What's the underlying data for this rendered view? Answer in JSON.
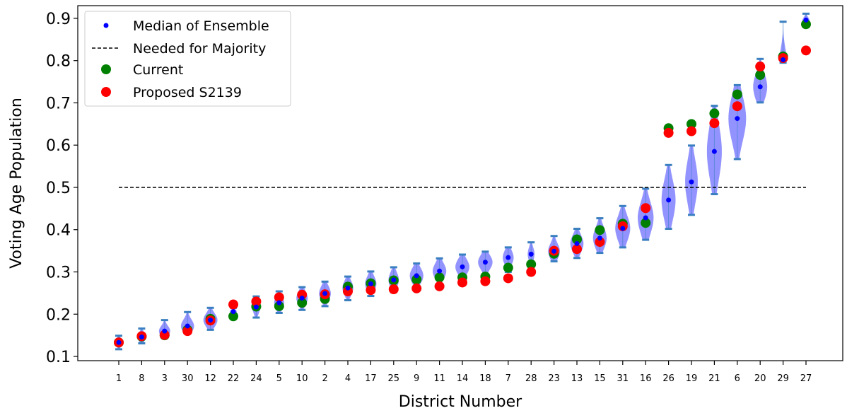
{
  "chart_data": {
    "type": "scatter",
    "title": "",
    "xlabel": "District Number",
    "ylabel": "Voting Age Population",
    "ylim": [
      0.09,
      0.93
    ],
    "yticks": [
      "0.1",
      "0.2",
      "0.3",
      "0.4",
      "0.5",
      "0.6",
      "0.7",
      "0.8",
      "0.9"
    ],
    "grid": false,
    "legend_position": "top-left",
    "categories": [
      "1",
      "8",
      "3",
      "30",
      "12",
      "22",
      "24",
      "5",
      "10",
      "2",
      "4",
      "17",
      "25",
      "9",
      "11",
      "14",
      "18",
      "7",
      "28",
      "23",
      "13",
      "15",
      "31",
      "16",
      "26",
      "19",
      "21",
      "6",
      "20",
      "29",
      "27"
    ],
    "series": [
      {
        "name": "Median of Ensemble",
        "marker": "small-dot",
        "color": "#0000ff",
        "values": [
          0.133,
          0.146,
          0.16,
          0.172,
          0.186,
          0.206,
          0.217,
          0.227,
          0.238,
          0.249,
          0.262,
          0.272,
          0.281,
          0.291,
          0.302,
          0.312,
          0.323,
          0.334,
          0.342,
          0.349,
          0.367,
          0.38,
          0.403,
          0.428,
          0.47,
          0.513,
          0.585,
          0.663,
          0.738,
          0.802,
          0.896
        ]
      },
      {
        "name": "Needed for Majority",
        "style": "dashed-line",
        "color": "#000000",
        "value": 0.5
      },
      {
        "name": "Current",
        "marker": "dot",
        "color": "#008000",
        "values": [
          0.133,
          0.147,
          0.15,
          0.163,
          0.189,
          0.195,
          0.218,
          0.219,
          0.227,
          0.236,
          0.265,
          0.273,
          0.28,
          0.282,
          0.287,
          0.287,
          0.289,
          0.31,
          0.318,
          0.343,
          0.377,
          0.399,
          0.414,
          0.416,
          0.64,
          0.65,
          0.675,
          0.72,
          0.766,
          0.81,
          0.886
        ]
      },
      {
        "name": "Proposed S2139",
        "marker": "dot",
        "color": "#ff0000",
        "values": [
          0.133,
          0.148,
          0.151,
          0.16,
          0.185,
          0.223,
          0.23,
          0.24,
          0.246,
          0.247,
          0.254,
          0.257,
          0.259,
          0.261,
          0.266,
          0.275,
          0.278,
          0.285,
          0.3,
          0.35,
          0.354,
          0.371,
          0.408,
          0.451,
          0.629,
          0.633,
          0.652,
          0.692,
          0.786,
          0.806,
          0.824
        ]
      }
    ],
    "ensemble_distribution": {
      "type": "violin",
      "color": "#8080ff",
      "whisker_color": "#3a7fc0",
      "min": [
        0.117,
        0.131,
        0.147,
        0.155,
        0.163,
        0.197,
        0.192,
        0.203,
        0.21,
        0.219,
        0.233,
        0.243,
        0.252,
        0.26,
        0.271,
        0.282,
        0.291,
        0.3,
        0.316,
        0.325,
        0.333,
        0.345,
        0.358,
        0.376,
        0.402,
        0.435,
        0.484,
        0.567,
        0.701,
        0.795,
        0.888
      ],
      "max": [
        0.149,
        0.166,
        0.186,
        0.205,
        0.215,
        0.215,
        0.242,
        0.254,
        0.264,
        0.277,
        0.289,
        0.301,
        0.311,
        0.32,
        0.332,
        0.341,
        0.348,
        0.358,
        0.37,
        0.385,
        0.402,
        0.427,
        0.456,
        0.497,
        0.553,
        0.599,
        0.693,
        0.742,
        0.804,
        0.892,
        0.911
      ],
      "spread": [
        0.3,
        0.36,
        0.5,
        0.58,
        0.62,
        0.3,
        0.36,
        0.44,
        0.5,
        0.52,
        0.48,
        0.5,
        0.46,
        0.6,
        0.6,
        0.62,
        0.64,
        0.48,
        0.3,
        0.52,
        0.58,
        0.6,
        0.66,
        0.7,
        0.62,
        0.56,
        0.66,
        0.78,
        0.62,
        0.3,
        0.3
      ]
    }
  }
}
